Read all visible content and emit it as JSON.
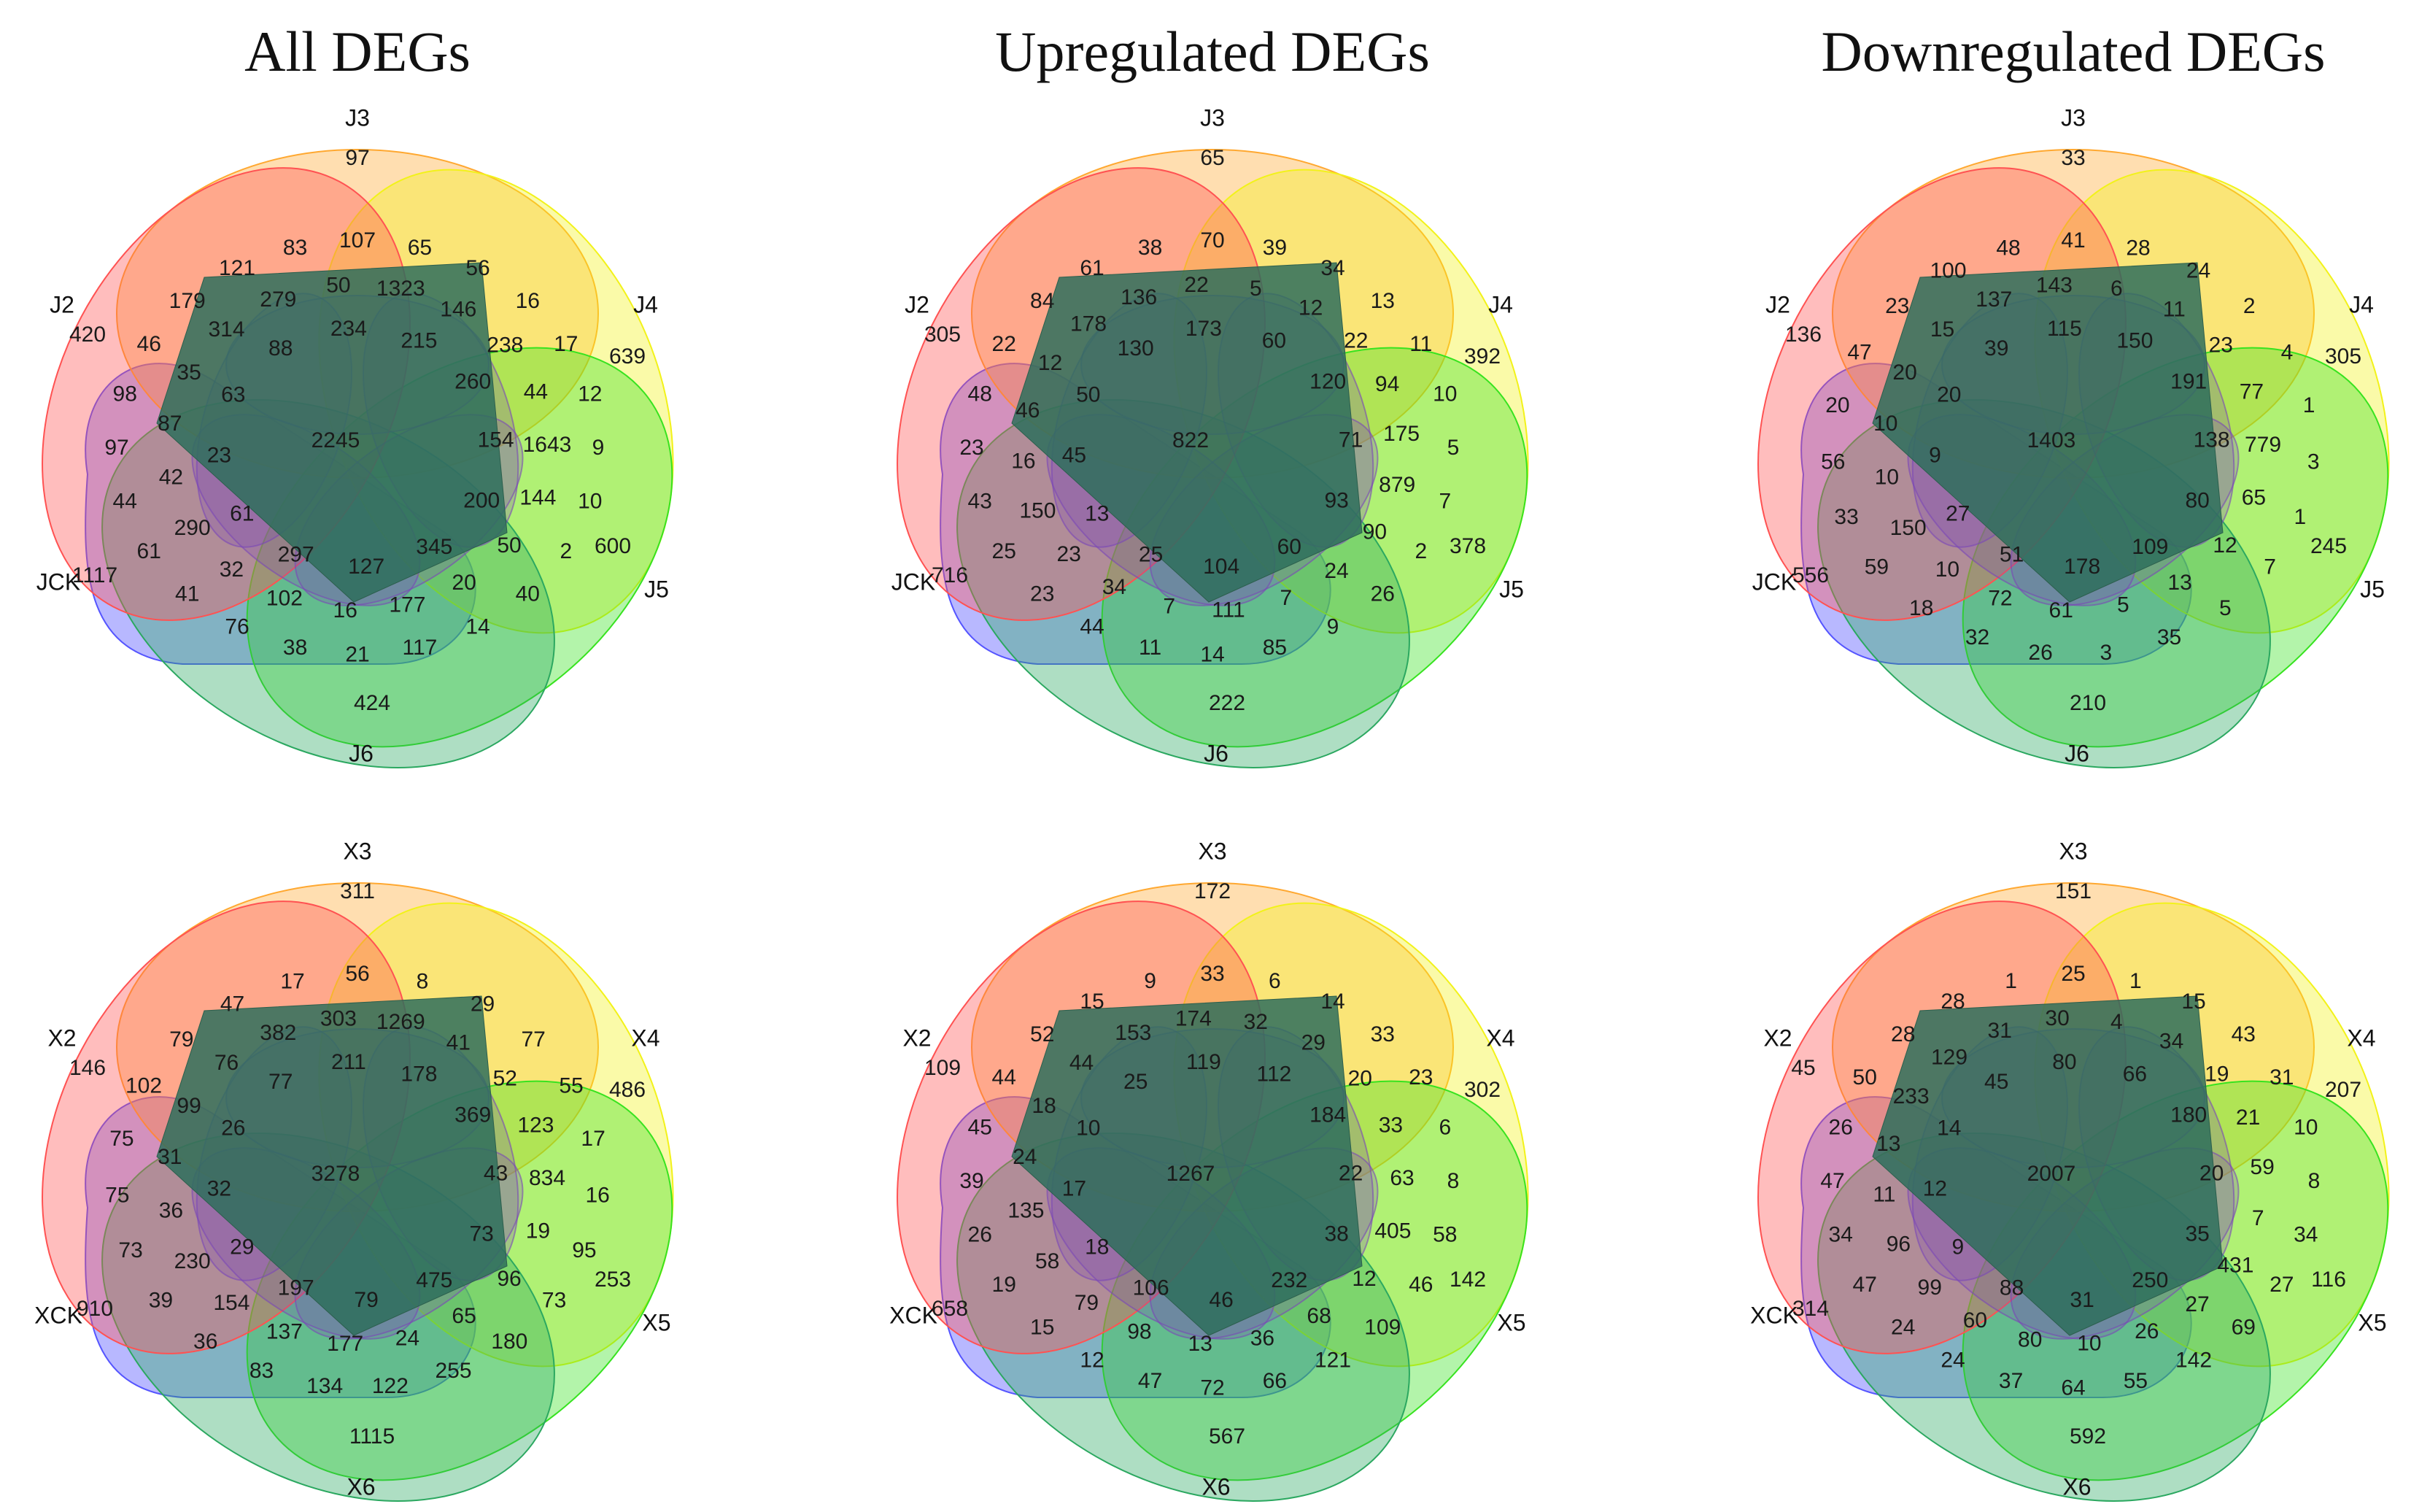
{
  "titles": [
    "All DEGs",
    "Upregulated DEGs",
    "Downregulated DEGs"
  ],
  "colors": {
    "s2": "#ff5252",
    "s3": "#ffa830",
    "s4": "#f2f21a",
    "s5": "#37e31f",
    "s6": "#2ba860",
    "sCK": "#5555ff",
    "petal_purple": "#7a46b8",
    "core": "#2e6e5c"
  },
  "panels": [
    {
      "id": "all-j",
      "title": "All DEGs",
      "labels": {
        "s2": "J2",
        "s3": "J3",
        "s4": "J4",
        "s5": "J5",
        "s6": "J6",
        "sCK": "JCK"
      },
      "center": "2245",
      "outer": [
        "97",
        "639",
        "600",
        "424",
        "1117",
        "420"
      ],
      "counts": [
        "107",
        "65",
        "56",
        "16",
        "17",
        "12",
        "9",
        "10",
        "2",
        "40",
        "14",
        "117",
        "21",
        "38",
        "76",
        "41",
        "61",
        "44",
        "97",
        "98",
        "46",
        "179",
        "121",
        "83",
        "1323",
        "146",
        "238",
        "44",
        "1643",
        "144",
        "50",
        "20",
        "177",
        "16",
        "102",
        "32",
        "290",
        "42",
        "87",
        "35",
        "314",
        "279",
        "50",
        "215",
        "260",
        "154",
        "200",
        "345",
        "127",
        "297",
        "61",
        "23",
        "63",
        "88",
        "234"
      ]
    },
    {
      "id": "up-j",
      "title": "Upregulated DEGs",
      "labels": {
        "s2": "J2",
        "s3": "J3",
        "s4": "J4",
        "s5": "J5",
        "s6": "J6",
        "sCK": "JCK"
      },
      "center": "822",
      "outer": [
        "65",
        "392",
        "378",
        "222",
        "716",
        "305"
      ],
      "counts": [
        "70",
        "39",
        "34",
        "13",
        "11",
        "10",
        "5",
        "7",
        "2",
        "26",
        "9",
        "85",
        "14",
        "11",
        "44",
        "23",
        "25",
        "43",
        "23",
        "48",
        "22",
        "84",
        "61",
        "38",
        "5",
        "12",
        "22",
        "94",
        "175",
        "879",
        "90",
        "24",
        "7",
        "111",
        "7",
        "34",
        "23",
        "150",
        "16",
        "46",
        "12",
        "178",
        "136",
        "22",
        "60",
        "120",
        "71",
        "93",
        "60",
        "104",
        "25",
        "13",
        "45",
        "50",
        "130",
        "173"
      ]
    },
    {
      "id": "down-j",
      "title": "Downregulated DEGs",
      "labels": {
        "s2": "J2",
        "s3": "J3",
        "s4": "J4",
        "s5": "J5",
        "s6": "J6",
        "sCK": "JCK"
      },
      "center": "1403",
      "outer": [
        "33",
        "305",
        "245",
        "210",
        "556",
        "136"
      ],
      "counts": [
        "41",
        "28",
        "24",
        "2",
        "4",
        "1",
        "3",
        "1",
        "7",
        "5",
        "35",
        "3",
        "26",
        "32",
        "18",
        "59",
        "33",
        "56",
        "20",
        "47",
        "23",
        "100",
        "48",
        "6",
        "11",
        "23",
        "77",
        "779",
        "65",
        "12",
        "13",
        "5",
        "61",
        "72",
        "10",
        "150",
        "10",
        "10",
        "20",
        "15",
        "137",
        "143",
        "150",
        "191",
        "138",
        "80",
        "109",
        "178",
        "51",
        "27",
        "9",
        "20",
        "39",
        "115"
      ]
    },
    {
      "id": "all-x",
      "title": "",
      "labels": {
        "s2": "X2",
        "s3": "X3",
        "s4": "X4",
        "s5": "X5",
        "s6": "X6",
        "sCK": "XCK"
      },
      "center": "3278",
      "outer": [
        "311",
        "486",
        "253",
        "1115",
        "910",
        "146"
      ],
      "counts": [
        "56",
        "8",
        "29",
        "77",
        "55",
        "17",
        "16",
        "95",
        "73",
        "180",
        "255",
        "122",
        "134",
        "83",
        "36",
        "39",
        "73",
        "75",
        "75",
        "102",
        "79",
        "47",
        "17",
        "1269",
        "41",
        "52",
        "123",
        "834",
        "19",
        "96",
        "65",
        "24",
        "177",
        "137",
        "154",
        "230",
        "36",
        "31",
        "99",
        "76",
        "382",
        "303",
        "178",
        "369",
        "43",
        "73",
        "475",
        "79",
        "197",
        "29",
        "32",
        "26",
        "77",
        "211"
      ]
    },
    {
      "id": "up-x",
      "title": "",
      "labels": {
        "s2": "X2",
        "s3": "X3",
        "s4": "X4",
        "s5": "X5",
        "s6": "X6",
        "sCK": "XCK"
      },
      "center": "1267",
      "outer": [
        "172",
        "302",
        "142",
        "567",
        "658",
        "109"
      ],
      "counts": [
        "33",
        "6",
        "14",
        "33",
        "23",
        "6",
        "8",
        "58",
        "46",
        "109",
        "121",
        "66",
        "72",
        "47",
        "12",
        "15",
        "19",
        "26",
        "39",
        "45",
        "44",
        "52",
        "15",
        "9",
        "32",
        "29",
        "20",
        "33",
        "63",
        "405",
        "12",
        "68",
        "36",
        "13",
        "98",
        "79",
        "58",
        "135",
        "24",
        "18",
        "44",
        "153",
        "174",
        "112",
        "184",
        "22",
        "38",
        "232",
        "46",
        "106",
        "18",
        "17",
        "10",
        "25",
        "119"
      ]
    },
    {
      "id": "down-x",
      "title": "",
      "labels": {
        "s2": "X2",
        "s3": "X3",
        "s4": "X4",
        "s5": "X5",
        "s6": "X6",
        "sCK": "XCK"
      },
      "center": "2007",
      "outer": [
        "151",
        "207",
        "116",
        "592",
        "314",
        "45"
      ],
      "counts": [
        "25",
        "1",
        "15",
        "43",
        "31",
        "10",
        "8",
        "34",
        "27",
        "69",
        "142",
        "55",
        "64",
        "37",
        "24",
        "24",
        "47",
        "34",
        "47",
        "26",
        "50",
        "28",
        "28",
        "1",
        "4",
        "34",
        "19",
        "21",
        "59",
        "7",
        "431",
        "27",
        "26",
        "10",
        "80",
        "60",
        "99",
        "96",
        "11",
        "13",
        "233",
        "129",
        "31",
        "30",
        "66",
        "180",
        "20",
        "35",
        "250",
        "31",
        "88",
        "9",
        "12",
        "14",
        "45",
        "80"
      ]
    }
  ]
}
